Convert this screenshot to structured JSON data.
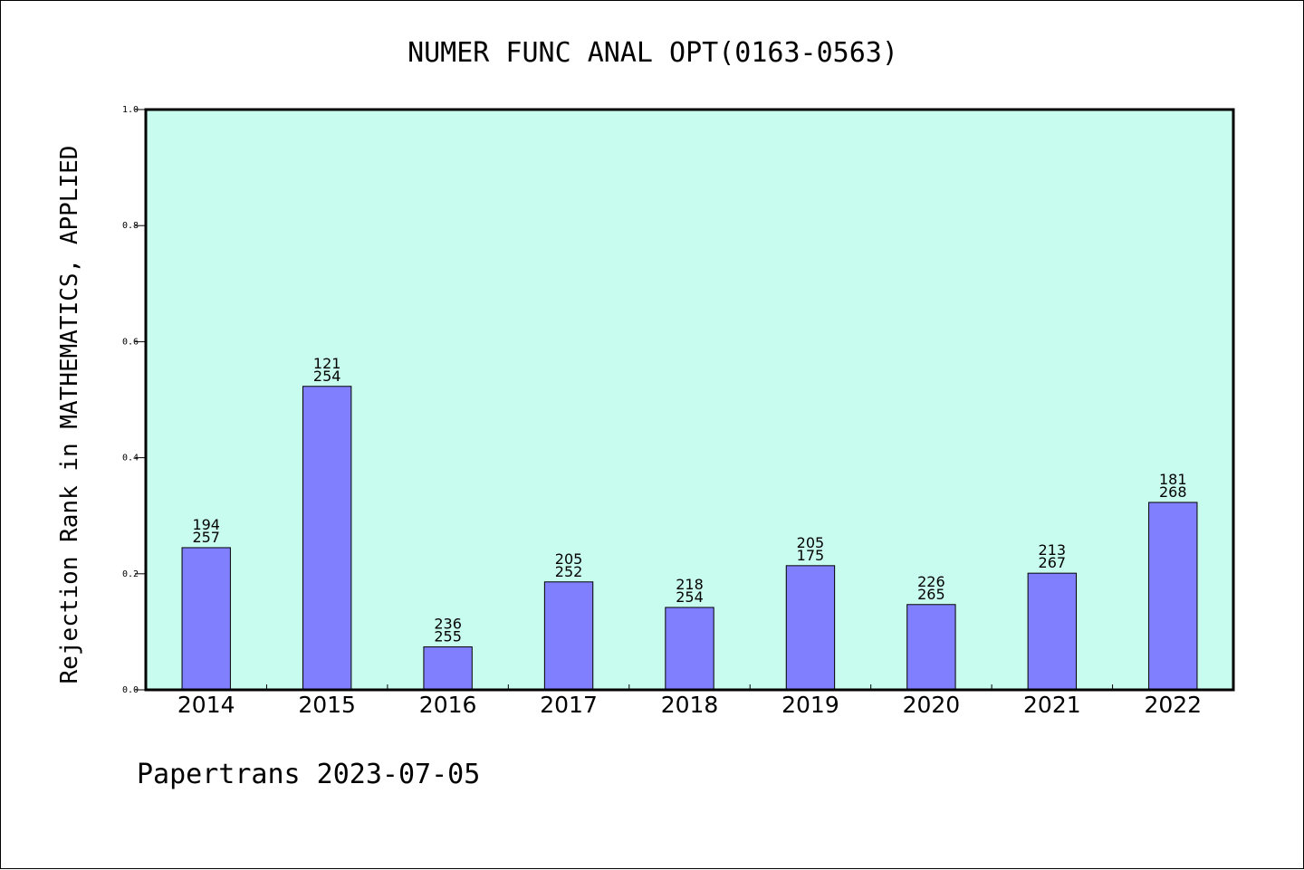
{
  "chart_data": {
    "type": "bar",
    "title": "NUMER FUNC ANAL OPT(0163-0563)",
    "xlabel": "",
    "ylabel": "Rejection Rank in MATHEMATICS, APPLIED",
    "ylim": [
      0,
      1.0
    ],
    "yticks": [
      "0.0",
      "0.2",
      "0.4",
      "0.6",
      "0.8",
      "1.0"
    ],
    "categories": [
      "2014",
      "2015",
      "2016",
      "2017",
      "2018",
      "2019",
      "2020",
      "2021",
      "2022"
    ],
    "values": [
      0.245,
      0.523,
      0.074,
      0.186,
      0.142,
      0.214,
      0.147,
      0.201,
      0.323
    ],
    "bar_labels_top": [
      "194",
      "121",
      "236",
      "205",
      "218",
      "205",
      "226",
      "213",
      "181"
    ],
    "bar_labels_bottom": [
      "257",
      "254",
      "255",
      "252",
      "254",
      "175",
      "265",
      "267",
      "268"
    ],
    "grid": false,
    "colors": {
      "bar": "#8080ff",
      "plot_background": "#c8fcee",
      "bar_edge": "#000000"
    }
  },
  "footer": {
    "text": "Papertrans 2023-07-05"
  }
}
